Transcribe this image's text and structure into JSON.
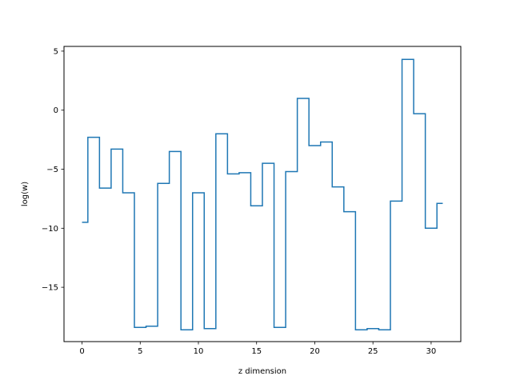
{
  "chart_data": {
    "type": "line",
    "drawstyle": "steps-mid",
    "title": "",
    "xlabel": "z dimension",
    "ylabel": "log(w)",
    "xlim": [
      -1.55,
      32.55
    ],
    "ylim": [
      -19.6,
      5.4
    ],
    "xticks": [
      0,
      5,
      10,
      15,
      20,
      25,
      30
    ],
    "yticks": [
      5,
      0,
      -5,
      -10,
      -15
    ],
    "ytick_labels": [
      "5",
      "0",
      "−5",
      "−10",
      "−15"
    ],
    "grid": false,
    "legend": false,
    "series": [
      {
        "color": "#1f77b4",
        "x": [
          0,
          1,
          2,
          3,
          4,
          5,
          6,
          7,
          8,
          9,
          10,
          11,
          12,
          13,
          14,
          15,
          16,
          17,
          18,
          19,
          20,
          21,
          22,
          23,
          24,
          25,
          26,
          27,
          28,
          29,
          30,
          31
        ],
        "y": [
          -9.5,
          -2.3,
          -6.6,
          -3.3,
          -7.0,
          -18.4,
          -18.3,
          -6.2,
          -3.5,
          -18.6,
          -7.0,
          -18.5,
          -2.0,
          -5.4,
          -5.3,
          -8.1,
          -4.5,
          -18.4,
          -5.2,
          1.0,
          -3.0,
          -2.7,
          -6.5,
          -8.6,
          -18.6,
          -18.5,
          -18.6,
          -7.7,
          4.3,
          -0.3,
          -10.0,
          -7.9
        ]
      }
    ]
  }
}
